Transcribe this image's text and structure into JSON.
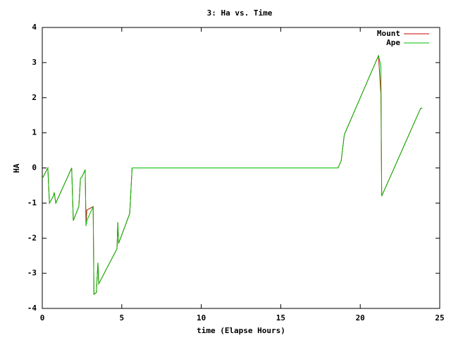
{
  "chart_data": {
    "type": "line",
    "title": "3: Ha vs. Time",
    "x_label": "time (Elapse Hours)",
    "y_label": "HA",
    "x": [
      0,
      0.35,
      0.45,
      0.7,
      0.75,
      0.85,
      1.85,
      1.95,
      2.3,
      2.4,
      2.5,
      2.6,
      2.7,
      2.75,
      2.8,
      3.2,
      3.25,
      3.4,
      3.5,
      3.55,
      4.7,
      4.75,
      4.8,
      5.5,
      5.65,
      18.6,
      18.8,
      19.0,
      21.15,
      21.3,
      21.35,
      21.45,
      23.8,
      23.9
    ],
    "series": [
      {
        "name": "Mount",
        "color": "#cc0000",
        "values": [
          -0.3,
          0.0,
          -1.0,
          -0.8,
          -0.7,
          -1.0,
          0.0,
          -1.5,
          -1.1,
          -0.3,
          -0.25,
          -0.15,
          -0.05,
          -1.65,
          -1.2,
          -1.1,
          -3.6,
          -3.55,
          -2.7,
          -3.3,
          -2.3,
          -1.55,
          -2.15,
          -1.3,
          0,
          0,
          0.2,
          0.95,
          3.2,
          2.1,
          -0.8,
          -0.7,
          1.7,
          1.7
        ]
      },
      {
        "name": "Ape",
        "color": "#00bb00",
        "values": [
          -0.3,
          0.0,
          -1.0,
          -0.8,
          -0.7,
          -1.0,
          0.0,
          -1.5,
          -1.1,
          -0.3,
          -0.25,
          -0.15,
          -0.05,
          -1.65,
          -1.5,
          -1.1,
          -3.6,
          -3.55,
          -2.7,
          -3.3,
          -2.3,
          -1.55,
          -2.15,
          -1.3,
          0,
          0,
          0.2,
          0.95,
          3.2,
          2.9,
          -0.8,
          -0.7,
          1.7,
          1.7
        ]
      }
    ],
    "xlim": [
      0,
      25
    ],
    "xticks": [
      0,
      5,
      10,
      15,
      20,
      25
    ],
    "ylim": [
      -4,
      4
    ],
    "yticks": [
      -4,
      -3,
      -2,
      -1,
      0,
      1,
      2,
      3,
      4
    ],
    "grid": false,
    "legend": "top-right"
  }
}
